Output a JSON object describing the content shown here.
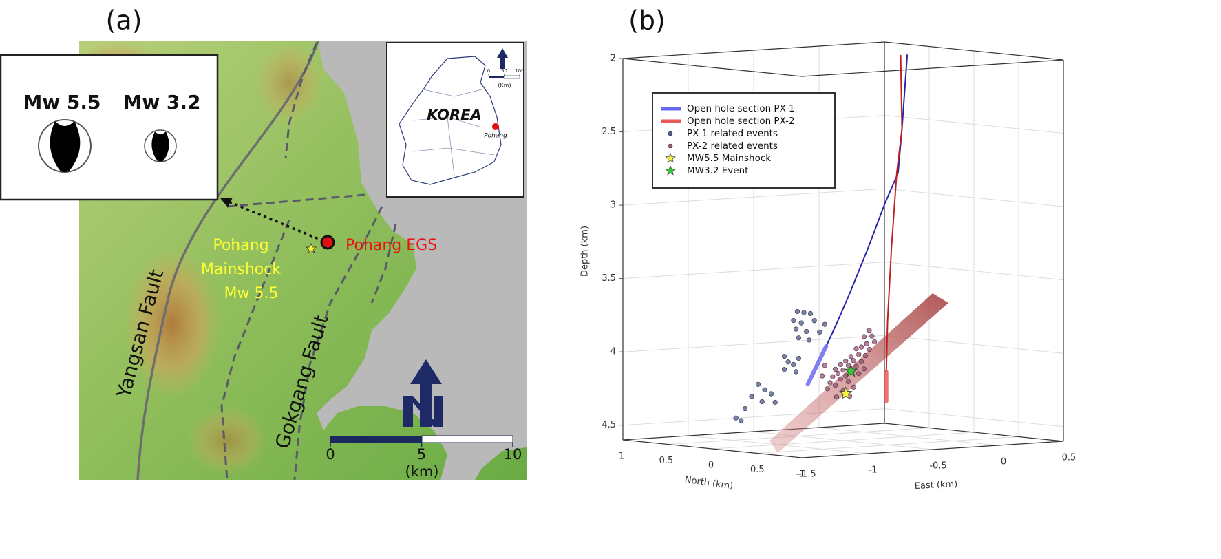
{
  "panel_a": {
    "label": "(a)",
    "focal_mechanisms": [
      "Mw 5.5",
      "Mw 3.2"
    ],
    "inset": {
      "title": "KOREA",
      "city": "Pohang",
      "scale_ticks": [
        0,
        50,
        100
      ],
      "scale_unit": "(Km)"
    },
    "site": "Pohang EGS",
    "mainshock": [
      "Pohang",
      "Mainshock",
      "Mw 5.5"
    ],
    "faults": [
      "Yangsan Fault",
      "Gokgang Fault"
    ],
    "scale_bar": {
      "ticks": [
        0,
        5,
        10
      ],
      "unit": "(km)"
    }
  },
  "chart_data": {
    "type": "scatter3d",
    "panel_label": "(b)",
    "zlabel": "Depth (km)",
    "ylabel": "North (km)",
    "xlabel": "East (km)",
    "xlim": [
      -1.5,
      0.5
    ],
    "xticks": [
      -1.5,
      -1,
      -0.5,
      0,
      0.5
    ],
    "ylim": [
      -1,
      1
    ],
    "yticks": [
      1,
      0.5,
      0,
      -0.5,
      -1
    ],
    "zlim": [
      2,
      4.6
    ],
    "zticks": [
      2,
      2.5,
      3,
      3.5,
      4,
      4.5
    ],
    "grid": true,
    "wells": [
      {
        "color": "#2626a6",
        "east": [
          -0.01,
          -0.05,
          -0.08,
          -0.18,
          -0.31,
          -0.45,
          -0.55,
          -0.63
        ],
        "north": [
          0,
          0,
          0,
          0,
          0,
          0,
          0,
          0
        ],
        "depth": [
          2.0,
          2.5,
          2.8,
          3.0,
          3.3,
          3.6,
          3.8,
          3.95
        ]
      },
      {
        "color": "#c02020",
        "east": [
          -0.06,
          -0.05,
          -0.09,
          -0.13,
          -0.16,
          -0.17
        ],
        "north": [
          0,
          0,
          0,
          0,
          0,
          0
        ],
        "depth": [
          2.0,
          2.5,
          2.8,
          3.3,
          3.8,
          4.15
        ]
      }
    ],
    "series": [
      {
        "name": "Open hole section PX-1",
        "color": "#6a6af0",
        "marker": "line",
        "east": [
          -0.63,
          -0.77
        ],
        "north": [
          0,
          0
        ],
        "depth": [
          3.95,
          4.2
        ]
      },
      {
        "name": "Open hole section PX-2",
        "color": "#e85a5a",
        "marker": "line",
        "east": [
          -0.17,
          -0.17
        ],
        "north": [
          0,
          0
        ],
        "depth": [
          4.15,
          4.35
        ]
      },
      {
        "name": "PX-1 related events",
        "color": "#4a5a92",
        "marker": "dot",
        "east": [
          -0.85,
          -0.8,
          -0.75,
          -0.88,
          -0.82,
          -0.72,
          -0.86,
          -0.78,
          -0.68,
          -0.84,
          -0.76,
          -0.64,
          -0.95,
          -0.92,
          -0.88,
          -0.95,
          -0.86,
          -0.84,
          -1.15,
          -1.1,
          -1.05,
          -1.2,
          -1.12,
          -1.02,
          -1.25,
          -1.32,
          -1.28
        ],
        "north": [
          0,
          0,
          0,
          0,
          0,
          0,
          0,
          0,
          0,
          0,
          0,
          0,
          0,
          0,
          0,
          0,
          0,
          0,
          0,
          0,
          0,
          0,
          0,
          0,
          0,
          0,
          0
        ],
        "depth": [
          3.7,
          3.71,
          3.72,
          3.76,
          3.78,
          3.77,
          3.82,
          3.84,
          3.85,
          3.88,
          3.9,
          3.8,
          4.0,
          4.04,
          4.06,
          4.09,
          4.11,
          4.02,
          4.18,
          4.22,
          4.25,
          4.26,
          4.3,
          4.31,
          4.34,
          4.4,
          4.42
        ]
      },
      {
        "name": "PX-2 related events",
        "color": "#a4507c",
        "marker": "dot",
        "east": [
          -0.3,
          -0.28,
          -0.34,
          -0.32,
          -0.36,
          -0.3,
          -0.4,
          -0.38,
          -0.33,
          -0.44,
          -0.42,
          -0.36,
          -0.48,
          -0.46,
          -0.4,
          -0.52,
          -0.5,
          -0.44,
          -0.56,
          -0.54,
          -0.48,
          -0.58,
          -0.52,
          -0.6,
          -0.56,
          -0.46,
          -0.62,
          -0.5,
          -0.42,
          -0.66,
          -0.64,
          -0.38,
          -0.34,
          -0.26,
          -0.55,
          -0.45
        ],
        "north": [
          0,
          0,
          0,
          0,
          0,
          0,
          0,
          0,
          0,
          0,
          0,
          0,
          0,
          0,
          0,
          0,
          0,
          0,
          0,
          0,
          0,
          0,
          0,
          0,
          0,
          0,
          0,
          0,
          0,
          0,
          0,
          0,
          0,
          0,
          0,
          0
        ],
        "depth": [
          3.86,
          3.9,
          3.9,
          3.95,
          3.97,
          3.99,
          3.98,
          4.02,
          4.03,
          4.03,
          4.06,
          4.07,
          4.06,
          4.09,
          4.1,
          4.08,
          4.12,
          4.13,
          4.11,
          4.14,
          4.16,
          4.16,
          4.18,
          4.2,
          4.22,
          4.2,
          4.24,
          4.26,
          4.24,
          4.15,
          4.08,
          4.15,
          4.12,
          3.94,
          4.3,
          4.3
        ]
      },
      {
        "name": "MW5.5 Mainshock",
        "color": "#f4f442",
        "marker": "star",
        "east": [
          -0.48
        ],
        "north": [
          0
        ],
        "depth": [
          4.28
        ]
      },
      {
        "name": "MW3.2 Event",
        "color": "#33cc33",
        "marker": "star",
        "east": [
          -0.44
        ],
        "north": [
          0
        ],
        "depth": [
          4.13
        ]
      }
    ]
  }
}
